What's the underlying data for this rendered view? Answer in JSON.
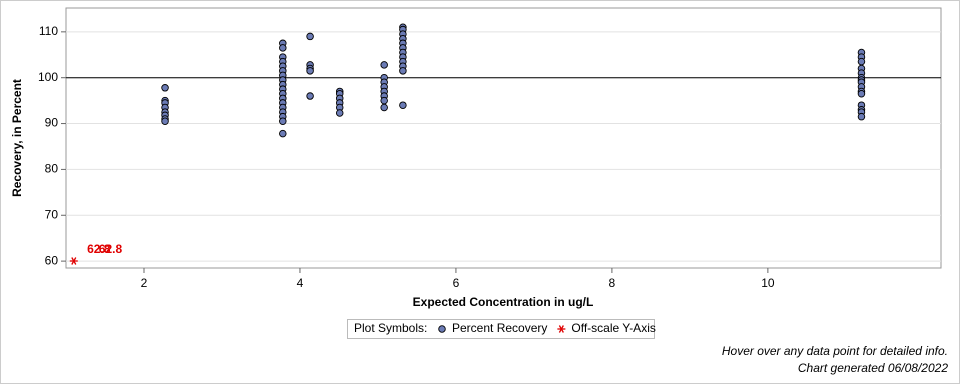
{
  "chart_data": {
    "type": "scatter",
    "xlabel": "Expected Concentration in ug/L",
    "ylabel": "Recovery, in Percent",
    "xlim": [
      1.0,
      12.22
    ],
    "ylim": [
      58.5,
      115.2
    ],
    "xticks": [
      2,
      4,
      6,
      8,
      10
    ],
    "yticks": [
      60,
      70,
      80,
      90,
      100,
      110
    ],
    "grid": true,
    "reference_lines": [
      100
    ],
    "legend_title": "Plot Symbols:",
    "series": [
      {
        "name": "Percent Recovery",
        "color": "#6b7bb5",
        "x": [
          2.27,
          2.27,
          2.27,
          2.27,
          2.27,
          2.27,
          2.27,
          2.27,
          3.78,
          3.78,
          3.78,
          3.78,
          3.78,
          3.78,
          3.78,
          3.78,
          3.78,
          3.78,
          3.78,
          3.78,
          3.78,
          3.78,
          3.78,
          3.78,
          3.78,
          3.78,
          4.13,
          4.13,
          4.13,
          4.13,
          4.13,
          4.51,
          4.51,
          4.51,
          4.51,
          4.51,
          4.51,
          5.08,
          5.08,
          5.08,
          5.08,
          5.08,
          5.08,
          5.08,
          5.08,
          5.32,
          5.32,
          5.32,
          5.32,
          5.32,
          5.32,
          5.32,
          5.32,
          5.32,
          5.32,
          5.32,
          5.32,
          11.2,
          11.2,
          11.2,
          11.2,
          11.2,
          11.2,
          11.2,
          11.2,
          11.2,
          11.2,
          11.2,
          11.2,
          11.2,
          11.2,
          11.2
        ],
        "values": [
          97.8,
          95,
          94.5,
          93.5,
          92.5,
          91.8,
          91,
          90.5,
          107.5,
          106.5,
          104.5,
          103.5,
          102.5,
          101.5,
          100.5,
          99.5,
          98.5,
          97.5,
          96.5,
          95.5,
          94.5,
          93.5,
          92.5,
          91.5,
          90.5,
          87.8,
          109,
          102.8,
          102,
          101.5,
          96,
          97,
          96.5,
          95.5,
          94.5,
          93.5,
          92.3,
          102.8,
          100,
          99,
          98,
          97,
          96,
          95,
          93.5,
          111,
          110.5,
          109.5,
          108.5,
          107.5,
          106.5,
          105.5,
          104.5,
          103.5,
          102.5,
          101.5,
          94,
          105.5,
          104.5,
          103.5,
          102,
          101,
          100,
          99.5,
          99,
          98,
          97,
          96.5,
          94,
          93,
          92.5,
          91.5
        ]
      },
      {
        "name": "Off-scale Y-Axis",
        "color": "#e00000",
        "marker": "asterisk",
        "x": [
          1.1
        ],
        "values": [
          60
        ]
      }
    ],
    "annotations": [
      {
        "text": "62.8",
        "x": 1.42,
        "y": 62.5
      },
      {
        "text": "62.8",
        "x": 1.57,
        "y": 62.5
      }
    ],
    "footnotes": [
      "Hover over any data point for detailed info.",
      "Chart generated 06/08/2022"
    ]
  }
}
